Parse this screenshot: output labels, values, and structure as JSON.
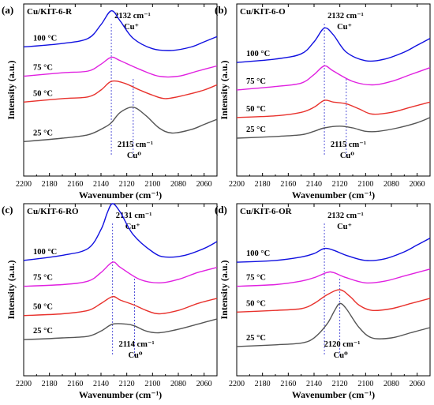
{
  "figure": {
    "colors": {
      "25 °C": "#555555",
      "50 °C": "#e8322d",
      "75 °C": "#e020e0",
      "100 °C": "#1010e0",
      "marker": "#2b2bd0"
    }
  },
  "chart_data": [
    {
      "type": "line",
      "panel": "(a)",
      "sample": "Cu/KIT-6-R",
      "xlabel": "Wavenumber (cm⁻¹)",
      "ylabel": "Intensity (a.u.)",
      "xlim": [
        2200,
        2050
      ],
      "x_reversed": true,
      "xticks": [
        2200,
        2180,
        2160,
        2140,
        2120,
        2100,
        2080,
        2060
      ],
      "yticks_shown": false,
      "grid": false,
      "legend": "inline-labels-left",
      "series": [
        {
          "name": "100 °C",
          "x": [
            2200,
            2170,
            2150,
            2140,
            2132,
            2125,
            2115,
            2100,
            2085,
            2070,
            2060,
            2050
          ],
          "y": [
            0.75,
            0.77,
            0.8,
            0.88,
            0.96,
            0.9,
            0.8,
            0.74,
            0.73,
            0.75,
            0.78,
            0.81
          ]
        },
        {
          "name": "75 °C",
          "x": [
            2200,
            2170,
            2150,
            2140,
            2132,
            2125,
            2110,
            2095,
            2080,
            2065,
            2050
          ],
          "y": [
            0.58,
            0.6,
            0.61,
            0.65,
            0.69,
            0.67,
            0.62,
            0.58,
            0.58,
            0.61,
            0.64
          ]
        },
        {
          "name": "50 °C",
          "x": [
            2200,
            2170,
            2150,
            2140,
            2132,
            2122,
            2110,
            2100,
            2090,
            2075,
            2060,
            2050
          ],
          "y": [
            0.43,
            0.45,
            0.46,
            0.5,
            0.55,
            0.54,
            0.5,
            0.47,
            0.45,
            0.47,
            0.5,
            0.53
          ]
        },
        {
          "name": "25 °C",
          "x": [
            2200,
            2170,
            2150,
            2138,
            2132,
            2125,
            2115,
            2105,
            2095,
            2085,
            2070,
            2060,
            2050
          ],
          "y": [
            0.2,
            0.22,
            0.24,
            0.28,
            0.31,
            0.37,
            0.4,
            0.35,
            0.28,
            0.25,
            0.27,
            0.3,
            0.33
          ]
        }
      ],
      "markers": [
        {
          "x": 2132,
          "label": "2132 cm⁻¹",
          "species": "Cu⁺",
          "label_pos": "top"
        },
        {
          "x": 2115,
          "label": "2115 cm⁻¹",
          "species": "Cu⁰",
          "label_pos": "bottom"
        }
      ]
    },
    {
      "type": "line",
      "panel": "(b)",
      "sample": "Cu/KIT-6-O",
      "xlabel": "Wavenumber (cm⁻¹)",
      "ylabel": "Intensity (a.u.)",
      "xlim": [
        2200,
        2050
      ],
      "x_reversed": true,
      "xticks": [
        2200,
        2180,
        2160,
        2140,
        2120,
        2100,
        2080,
        2060
      ],
      "yticks_shown": false,
      "grid": false,
      "legend": "inline-labels-left",
      "series": [
        {
          "name": "100 °C",
          "x": [
            2200,
            2170,
            2150,
            2140,
            2132,
            2125,
            2115,
            2100,
            2085,
            2070,
            2060,
            2050
          ],
          "y": [
            0.66,
            0.68,
            0.71,
            0.78,
            0.86,
            0.82,
            0.72,
            0.67,
            0.68,
            0.72,
            0.76,
            0.8
          ]
        },
        {
          "name": "75 °C",
          "x": [
            2200,
            2170,
            2150,
            2140,
            2132,
            2125,
            2110,
            2095,
            2080,
            2065,
            2050
          ],
          "y": [
            0.5,
            0.52,
            0.54,
            0.59,
            0.64,
            0.61,
            0.55,
            0.53,
            0.55,
            0.59,
            0.63
          ]
        },
        {
          "name": "50 °C",
          "x": [
            2200,
            2170,
            2150,
            2140,
            2132,
            2125,
            2115,
            2105,
            2095,
            2080,
            2065,
            2050
          ],
          "y": [
            0.34,
            0.35,
            0.37,
            0.4,
            0.44,
            0.43,
            0.42,
            0.39,
            0.36,
            0.37,
            0.4,
            0.43
          ]
        },
        {
          "name": "25 °C",
          "x": [
            2200,
            2170,
            2150,
            2140,
            2132,
            2120,
            2110,
            2100,
            2090,
            2075,
            2060,
            2050
          ],
          "y": [
            0.22,
            0.23,
            0.24,
            0.26,
            0.28,
            0.29,
            0.28,
            0.26,
            0.26,
            0.28,
            0.31,
            0.34
          ]
        }
      ],
      "markers": [
        {
          "x": 2132,
          "label": "2132 cm⁻¹",
          "species": "Cu⁺",
          "label_pos": "top"
        },
        {
          "x": 2115,
          "label": "2115 cm⁻¹",
          "species": "Cu⁰",
          "label_pos": "bottom"
        }
      ]
    },
    {
      "type": "line",
      "panel": "(c)",
      "sample": "Cu/KIT-6-RO",
      "xlabel": "Wavenumber (cm⁻¹)",
      "ylabel": "Intensity (a.u.)",
      "xlim": [
        2200,
        2050
      ],
      "x_reversed": true,
      "xticks": [
        2200,
        2180,
        2160,
        2140,
        2120,
        2100,
        2080,
        2060
      ],
      "yticks_shown": false,
      "grid": false,
      "legend": "inline-labels-left",
      "series": [
        {
          "name": "100 °C",
          "x": [
            2200,
            2170,
            2150,
            2140,
            2135,
            2131,
            2125,
            2115,
            2100,
            2090,
            2075,
            2060,
            2050
          ],
          "y": [
            0.67,
            0.7,
            0.74,
            0.85,
            0.95,
            1.0,
            0.95,
            0.82,
            0.72,
            0.69,
            0.7,
            0.74,
            0.78
          ]
        },
        {
          "name": "75 °C",
          "x": [
            2200,
            2170,
            2150,
            2140,
            2131,
            2125,
            2110,
            2095,
            2080,
            2065,
            2050
          ],
          "y": [
            0.52,
            0.53,
            0.55,
            0.6,
            0.66,
            0.63,
            0.56,
            0.54,
            0.56,
            0.6,
            0.63
          ]
        },
        {
          "name": "50 °C",
          "x": [
            2200,
            2170,
            2150,
            2140,
            2131,
            2125,
            2114,
            2105,
            2095,
            2080,
            2065,
            2050
          ],
          "y": [
            0.35,
            0.36,
            0.38,
            0.42,
            0.46,
            0.44,
            0.41,
            0.38,
            0.36,
            0.38,
            0.42,
            0.45
          ]
        },
        {
          "name": "25 °C",
          "x": [
            2200,
            2170,
            2150,
            2140,
            2131,
            2120,
            2114,
            2105,
            2095,
            2080,
            2065,
            2050
          ],
          "y": [
            0.21,
            0.22,
            0.23,
            0.26,
            0.3,
            0.3,
            0.29,
            0.26,
            0.25,
            0.27,
            0.3,
            0.33
          ]
        }
      ],
      "markers": [
        {
          "x": 2131,
          "label": "2131 cm⁻¹",
          "species": "Cu⁺",
          "label_pos": "top"
        },
        {
          "x": 2114,
          "label": "2114 cm⁻¹",
          "species": "Cu⁰",
          "label_pos": "bottom"
        }
      ]
    },
    {
      "type": "line",
      "panel": "(d)",
      "sample": "Cu/KIT-6-OR",
      "xlabel": "Wavenumber (cm⁻¹)",
      "ylabel": "Intensity (a.u.)",
      "xlim": [
        2200,
        2050
      ],
      "x_reversed": true,
      "xticks": [
        2200,
        2180,
        2160,
        2140,
        2120,
        2100,
        2080,
        2060
      ],
      "yticks_shown": false,
      "grid": false,
      "legend": "inline-labels-left",
      "series": [
        {
          "name": "100 °C",
          "x": [
            2200,
            2170,
            2150,
            2140,
            2132,
            2125,
            2115,
            2100,
            2085,
            2070,
            2060,
            2050
          ],
          "y": [
            0.66,
            0.67,
            0.69,
            0.71,
            0.74,
            0.73,
            0.7,
            0.67,
            0.68,
            0.72,
            0.76,
            0.8
          ]
        },
        {
          "name": "75 °C",
          "x": [
            2200,
            2170,
            2150,
            2140,
            2130,
            2125,
            2115,
            2100,
            2085,
            2070,
            2050
          ],
          "y": [
            0.52,
            0.53,
            0.55,
            0.57,
            0.6,
            0.6,
            0.57,
            0.54,
            0.55,
            0.58,
            0.62
          ]
        },
        {
          "name": "50 °C",
          "x": [
            2200,
            2170,
            2150,
            2140,
            2130,
            2120,
            2112,
            2105,
            2095,
            2080,
            2065,
            2050
          ],
          "y": [
            0.37,
            0.38,
            0.39,
            0.42,
            0.47,
            0.5,
            0.46,
            0.41,
            0.38,
            0.39,
            0.42,
            0.45
          ]
        },
        {
          "name": "25 °C",
          "x": [
            2200,
            2170,
            2150,
            2140,
            2130,
            2124,
            2120,
            2115,
            2105,
            2095,
            2080,
            2065,
            2050
          ],
          "y": [
            0.17,
            0.18,
            0.19,
            0.22,
            0.3,
            0.38,
            0.42,
            0.39,
            0.28,
            0.22,
            0.22,
            0.25,
            0.28
          ]
        }
      ],
      "markers": [
        {
          "x": 2132,
          "label": "2132 cm⁻¹",
          "species": "Cu⁺",
          "label_pos": "top"
        },
        {
          "x": 2120,
          "label": "2120 cm⁻¹",
          "species": "Cu⁰",
          "label_pos": "bottom"
        }
      ]
    }
  ]
}
